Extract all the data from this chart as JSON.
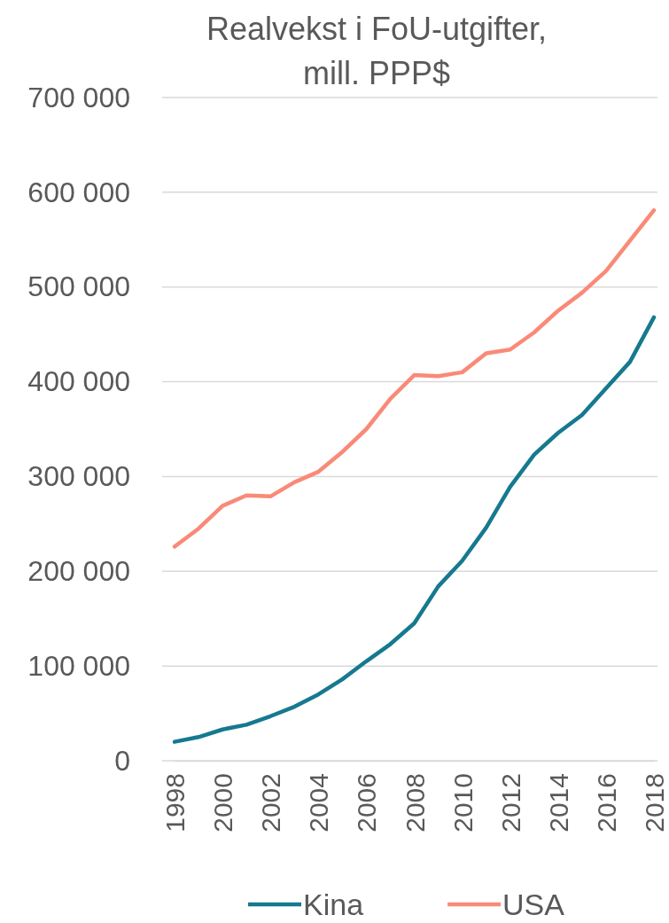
{
  "chart_data": {
    "type": "line",
    "title": "Realvekst i FoU-utgifter,\nmill. PPP$",
    "x": [
      1998,
      1999,
      2000,
      2001,
      2002,
      2003,
      2004,
      2005,
      2006,
      2007,
      2008,
      2009,
      2010,
      2011,
      2012,
      2013,
      2014,
      2015,
      2016,
      2017,
      2018
    ],
    "series": [
      {
        "name": "Kina",
        "color": "#16798f",
        "values": [
          20000,
          25000,
          33000,
          38000,
          47000,
          57000,
          70000,
          86000,
          105000,
          123000,
          145000,
          184000,
          211000,
          246000,
          289000,
          323000,
          346000,
          365000,
          393000,
          421000,
          468000
        ]
      },
      {
        "name": "USA",
        "color": "#f98a78",
        "values": [
          226000,
          245000,
          269000,
          280000,
          279000,
          294000,
          305000,
          326000,
          350000,
          382000,
          407000,
          406000,
          410000,
          430000,
          434000,
          452000,
          475000,
          494000,
          517000,
          549000,
          581000
        ]
      }
    ],
    "xlim": [
      1998,
      2018
    ],
    "xticks": [
      1998,
      2000,
      2002,
      2004,
      2006,
      2008,
      2010,
      2012,
      2014,
      2016,
      2018
    ],
    "ylim": [
      0,
      700000
    ],
    "yticks": [
      {
        "value": 0,
        "label": "0"
      },
      {
        "value": 100000,
        "label": "100 000"
      },
      {
        "value": 200000,
        "label": "200 000"
      },
      {
        "value": 300000,
        "label": "300 000"
      },
      {
        "value": 400000,
        "label": "400 000"
      },
      {
        "value": 500000,
        "label": "500 000"
      },
      {
        "value": 600000,
        "label": "600 000"
      },
      {
        "value": 700000,
        "label": "700 000"
      }
    ],
    "grid": "y",
    "legend": "bottom",
    "marker": "none",
    "line_style": "solid"
  }
}
